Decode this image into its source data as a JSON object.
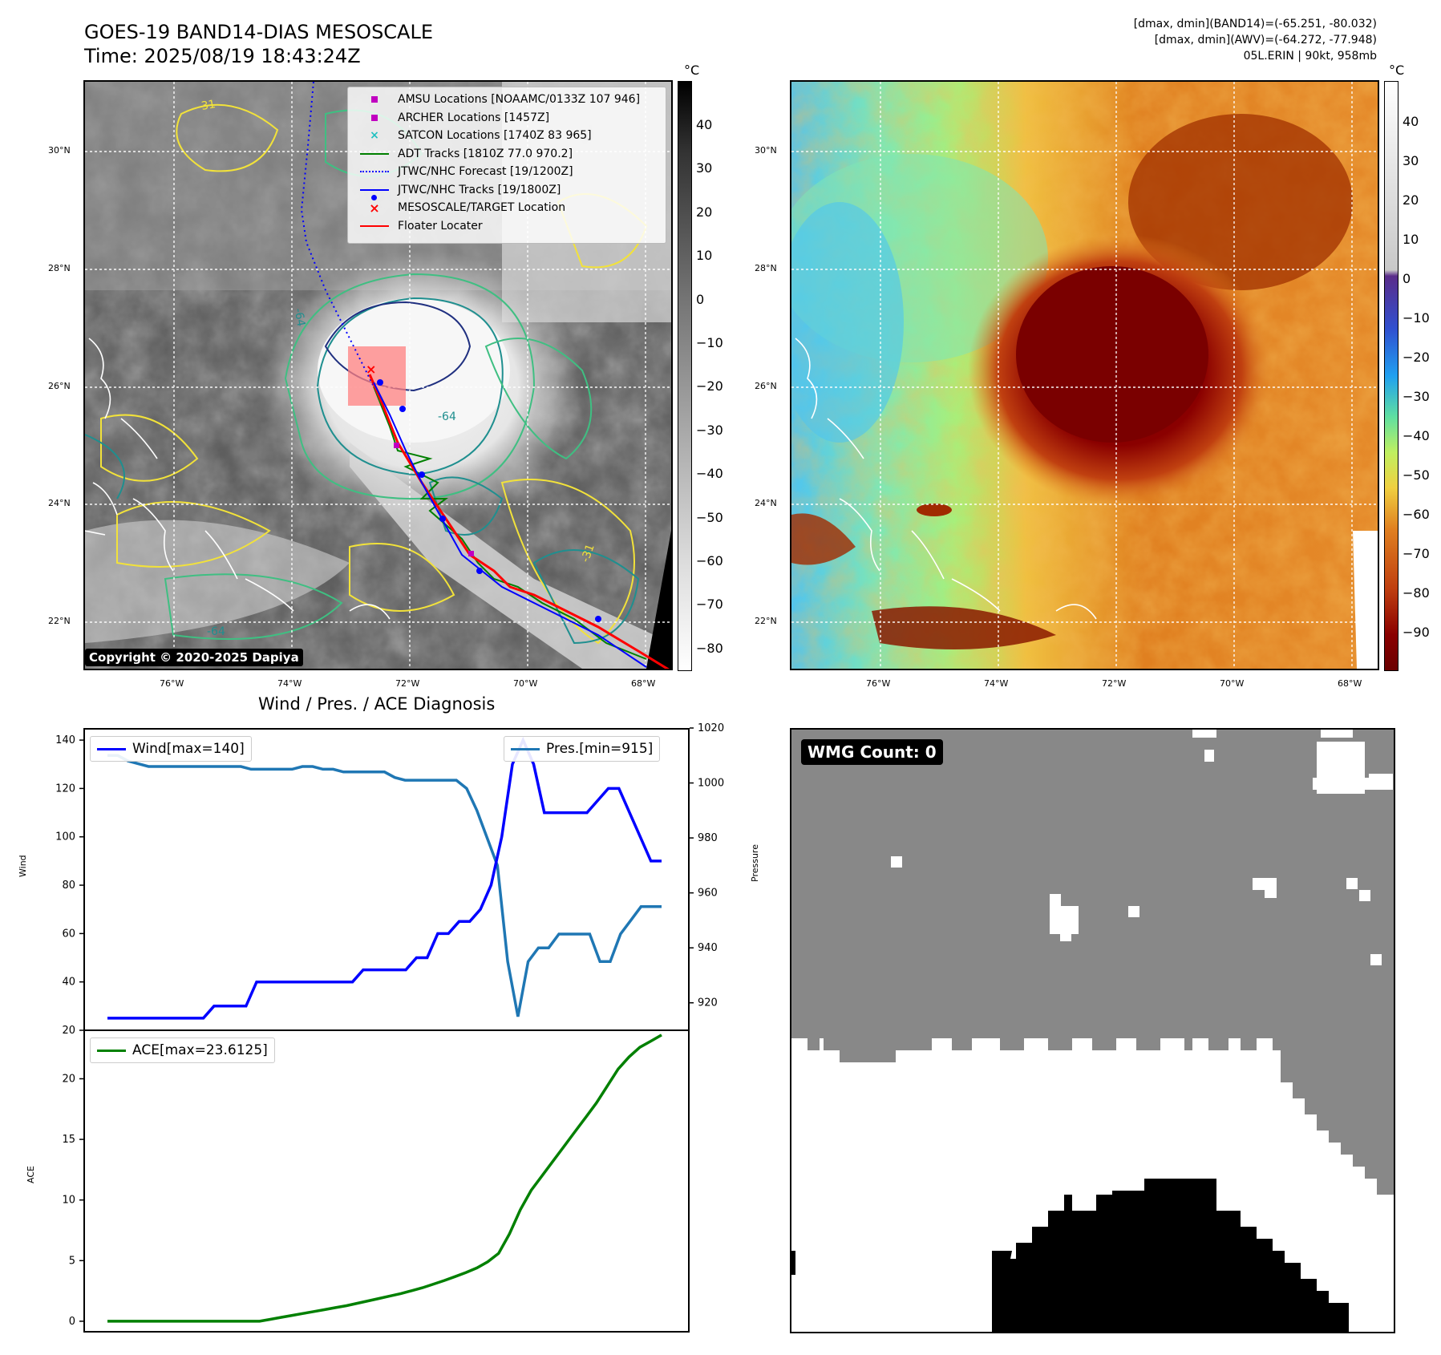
{
  "header": {
    "title_line1": "GOES-19 BAND14-DIAS MESOSCALE",
    "title_line2": "Time: 2025/08/19 18:43:24Z",
    "right_line1": "[dmax, dmin](BAND14)=(-65.251, -80.032)",
    "right_line2": "[dmax, dmin](AWV)=(-64.272, -77.948)",
    "right_line3": "05L.ERIN | 90kt, 958mb"
  },
  "map": {
    "lat_labels": [
      "30°N",
      "28°N",
      "26°N",
      "24°N",
      "22°N"
    ],
    "lon_labels": [
      "76°W",
      "74°W",
      "72°W",
      "70°W",
      "68°W"
    ],
    "contour_labels": [
      "-64",
      "-31",
      "-64",
      "-31",
      "-64"
    ],
    "copyright": "Copyright © 2020-2025 Dapiya"
  },
  "legend": {
    "items": [
      {
        "label": "AMSU Locations [NOAAMC/0133Z 107 946]",
        "color": "#c000c0",
        "symbol": "square"
      },
      {
        "label": "ARCHER Locations [1457Z]",
        "color": "#c000c0",
        "symbol": "square"
      },
      {
        "label": "SATCON Locations [1740Z 83 965]",
        "color": "#20c0c0",
        "symbol": "x"
      },
      {
        "label": "ADT Tracks [1810Z 77.0 970.2]",
        "color": "#008000",
        "symbol": "line"
      },
      {
        "label": "JTWC/NHC Forecast [19/1200Z]",
        "color": "#0000ff",
        "symbol": "dotted"
      },
      {
        "label": "JTWC/NHC Tracks [19/1800Z]",
        "color": "#0000ff",
        "symbol": "line-dot"
      },
      {
        "label": "MESOSCALE/TARGET Location",
        "color": "#ff0000",
        "symbol": "x"
      },
      {
        "label": "Floater Locater",
        "color": "#ff0000",
        "symbol": "line"
      }
    ]
  },
  "colorbar_gray": {
    "unit": "°C",
    "ticks": [
      "40",
      "30",
      "20",
      "10",
      "0",
      "−10",
      "−20",
      "−30",
      "−40",
      "−50",
      "−60",
      "−70",
      "−80"
    ]
  },
  "colorbar_color": {
    "unit": "°C",
    "ticks": [
      "40",
      "30",
      "20",
      "10",
      "0",
      "−10",
      "−20",
      "−30",
      "−40",
      "−50",
      "−60",
      "−70",
      "−80",
      "−90"
    ]
  },
  "chart_data": [
    {
      "type": "line",
      "title": "Wind / Pres. / ACE Diagnosis",
      "ylabel": "Wind",
      "ylim": [
        20,
        145
      ],
      "yticks": [
        "140",
        "120",
        "100",
        "80",
        "60",
        "40",
        "20"
      ],
      "series": [
        {
          "name": "Wind[max=140]",
          "color": "#0000ff",
          "values": [
            25,
            25,
            25,
            25,
            25,
            25,
            25,
            25,
            25,
            25,
            30,
            30,
            30,
            30,
            40,
            40,
            40,
            40,
            40,
            40,
            40,
            40,
            40,
            40,
            45,
            45,
            45,
            45,
            45,
            50,
            50,
            60,
            60,
            65,
            65,
            70,
            80,
            100,
            130,
            140,
            130,
            110,
            110,
            110,
            110,
            110,
            115,
            120,
            120,
            110,
            100,
            90,
            90
          ]
        }
      ],
      "legend_loc": "upper left"
    },
    {
      "type": "line",
      "ylabel": "Pressure",
      "ylim": [
        910,
        1020
      ],
      "yticks": [
        "1020",
        "1000",
        "980",
        "960",
        "940",
        "920"
      ],
      "series": [
        {
          "name": "Pres.[min=915]",
          "color": "#1f77b4",
          "values": [
            1010,
            1010,
            1008,
            1007,
            1006,
            1006,
            1006,
            1006,
            1006,
            1006,
            1006,
            1006,
            1006,
            1006,
            1005,
            1005,
            1005,
            1005,
            1005,
            1006,
            1006,
            1005,
            1005,
            1004,
            1004,
            1004,
            1004,
            1004,
            1002,
            1001,
            1001,
            1001,
            1001,
            1001,
            1001,
            998,
            990,
            980,
            970,
            935,
            915,
            935,
            940,
            940,
            945,
            945,
            945,
            945,
            935,
            935,
            945,
            950,
            955,
            955,
            955
          ]
        }
      ],
      "legend_loc": "upper right"
    },
    {
      "type": "line",
      "ylabel": "ACE",
      "ylim": [
        -1,
        24
      ],
      "yticks": [
        "20",
        "15",
        "10",
        "5",
        "0"
      ],
      "series": [
        {
          "name": "ACE[max=23.6125]",
          "color": "#008000",
          "values": [
            0,
            0,
            0,
            0,
            0,
            0,
            0,
            0,
            0,
            0,
            0,
            0,
            0,
            0,
            0,
            0.16,
            0.32,
            0.48,
            0.64,
            0.8,
            0.96,
            1.12,
            1.28,
            1.48,
            1.68,
            1.88,
            2.08,
            2.28,
            2.52,
            2.76,
            3.06,
            3.36,
            3.68,
            4.02,
            4.4,
            4.9,
            5.6,
            7.2,
            9.2,
            10.8,
            12.0,
            13.2,
            14.4,
            15.6,
            16.8,
            18.0,
            19.4,
            20.8,
            21.8,
            22.6,
            23.1,
            23.6125
          ]
        }
      ],
      "legend_loc": "upper left"
    }
  ],
  "wmg": {
    "label": "WMG Count: 0"
  }
}
